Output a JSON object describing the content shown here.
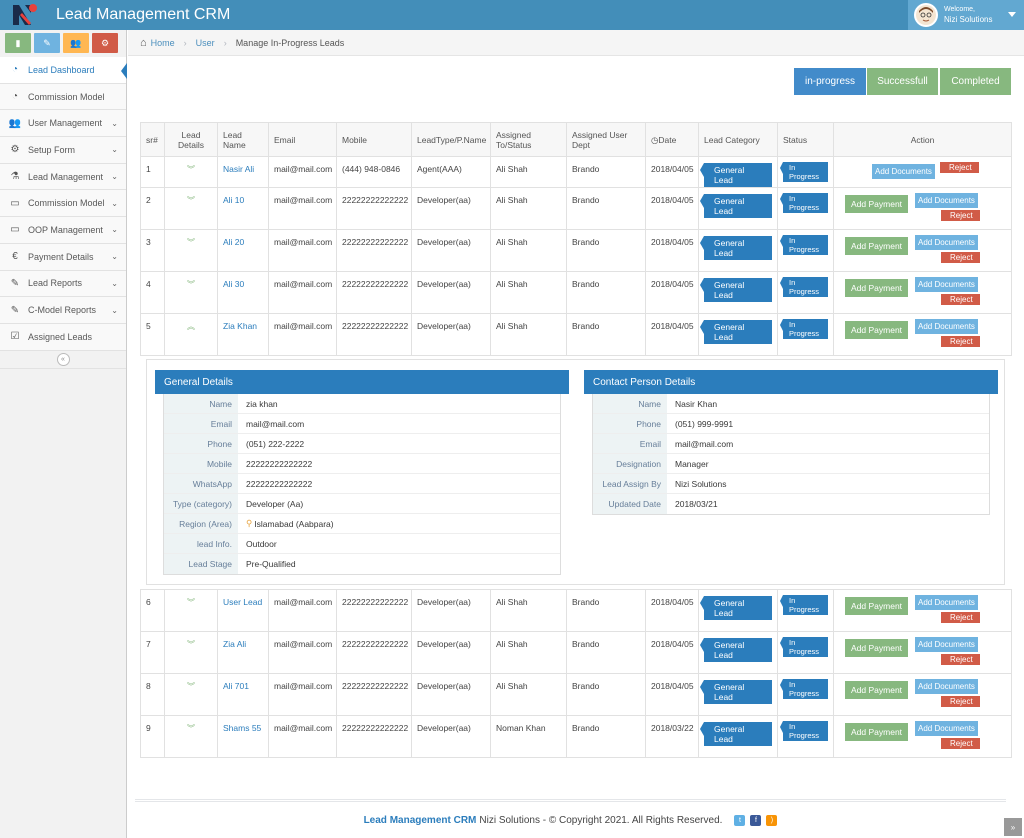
{
  "app": {
    "title": "Lead Management CRM",
    "welcome": "Welcome,",
    "user": "Nizi Solutions"
  },
  "shortcuts": [
    {
      "icon": "bar-chart-icon",
      "color": "#87b87f"
    },
    {
      "icon": "pencil-icon",
      "color": "#6fb3e0"
    },
    {
      "icon": "users-icon",
      "color": "#ffb752"
    },
    {
      "icon": "cogs-icon",
      "color": "#d15b47"
    }
  ],
  "sidebar": {
    "items": [
      {
        "label": "Lead Dashboard",
        "icon": "tachometer-icon",
        "glyph": "◔",
        "expand": false
      },
      {
        "label": "Commission Model",
        "icon": "tachometer-icon",
        "glyph": "◔",
        "expand": false
      },
      {
        "label": "User Management",
        "icon": "users-icon",
        "glyph": "👥",
        "expand": true
      },
      {
        "label": "Setup Form",
        "icon": "cogs-icon",
        "glyph": "⚙",
        "expand": true
      },
      {
        "label": "Lead Management",
        "icon": "flask-icon",
        "glyph": "⚗",
        "expand": true
      },
      {
        "label": "Commission Model",
        "icon": "desktop-icon",
        "glyph": "▭",
        "expand": true
      },
      {
        "label": "OOP Management",
        "icon": "desktop-icon",
        "glyph": "▭",
        "expand": true
      },
      {
        "label": "Payment Details",
        "icon": "euro-icon",
        "glyph": "€",
        "expand": true
      },
      {
        "label": "Lead Reports",
        "icon": "edit-icon",
        "glyph": "✎",
        "expand": true
      },
      {
        "label": "C-Model Reports",
        "icon": "edit-icon",
        "glyph": "✎",
        "expand": true
      },
      {
        "label": "Assigned Leads",
        "icon": "check-square-icon",
        "glyph": "☑",
        "expand": false
      }
    ]
  },
  "breadcrumb": {
    "home": "Home",
    "user": "User",
    "current": "Manage In-Progress Leads"
  },
  "tabs": {
    "in_progress": "in-progress",
    "successful": "Successfull",
    "completed": "Completed"
  },
  "table": {
    "headers": {
      "sr": "sr#",
      "details": "Lead Details",
      "name": "Lead Name",
      "email": "Email",
      "mobile": "Mobile",
      "type": "LeadType/P.Name",
      "assigned": "Assigned To/Status",
      "dept": "Assigned User Dept",
      "date": "Date",
      "category": "Lead Category",
      "status": "Status",
      "action": "Action"
    },
    "rows_top": [
      {
        "sr": "1",
        "name": "Nasir Ali",
        "email": "mail@mail.com",
        "mobile": "(444) 948-0846",
        "type": "Agent(AAA)",
        "assigned": "Ali Shah",
        "dept": "Brando",
        "date": "2018/04/05",
        "category": "General Lead",
        "status": "In Progress"
      },
      {
        "sr": "2",
        "name": "Ali 10",
        "email": "mail@mail.com",
        "mobile": "22222222222222",
        "type": "Developer(aa)",
        "assigned": "Ali Shah",
        "dept": "Brando",
        "date": "2018/04/05",
        "category": "General Lead",
        "status": "In Progress"
      },
      {
        "sr": "3",
        "name": "Ali 20",
        "email": "mail@mail.com",
        "mobile": "22222222222222",
        "type": "Developer(aa)",
        "assigned": "Ali Shah",
        "dept": "Brando",
        "date": "2018/04/05",
        "category": "General Lead",
        "status": "In Progress"
      },
      {
        "sr": "4",
        "name": "Ali 30",
        "email": "mail@mail.com",
        "mobile": "22222222222222",
        "type": "Developer(aa)",
        "assigned": "Ali Shah",
        "dept": "Brando",
        "date": "2018/04/05",
        "category": "General Lead",
        "status": "In Progress"
      },
      {
        "sr": "5",
        "name": "Zia Khan",
        "email": "mail@mail.com",
        "mobile": "22222222222222",
        "type": "Developer(aa)",
        "assigned": "Ali Shah",
        "dept": "Brando",
        "date": "2018/04/05",
        "category": "General Lead",
        "status": "In Progress"
      }
    ],
    "rows_bottom": [
      {
        "sr": "6",
        "name": "User Lead",
        "email": "mail@mail.com",
        "mobile": "22222222222222",
        "type": "Developer(aa)",
        "assigned": "Ali Shah",
        "dept": "Brando",
        "date": "2018/04/05",
        "category": "General Lead",
        "status": "In Progress"
      },
      {
        "sr": "7",
        "name": "Zia Ali",
        "email": "mail@mail.com",
        "mobile": "22222222222222",
        "type": "Developer(aa)",
        "assigned": "Ali Shah",
        "dept": "Brando",
        "date": "2018/04/05",
        "category": "General Lead",
        "status": "In Progress"
      },
      {
        "sr": "8",
        "name": "Ali 701",
        "email": "mail@mail.com",
        "mobile": "22222222222222",
        "type": "Developer(aa)",
        "assigned": "Ali Shah",
        "dept": "Brando",
        "date": "2018/04/05",
        "category": "General Lead",
        "status": "In Progress"
      },
      {
        "sr": "9",
        "name": "Shams 55",
        "email": "mail@mail.com",
        "mobile": "22222222222222",
        "type": "Developer(aa)",
        "assigned": "Noman Khan",
        "dept": "Brando",
        "date": "2018/03/22",
        "category": "General Lead",
        "status": "In Progress"
      }
    ],
    "actions": {
      "add_payment": "Add Payment",
      "add_documents": "Add Documents",
      "reject": "Reject"
    }
  },
  "general_details": {
    "title": "General Details",
    "fields": [
      {
        "k": "Name",
        "v": "zia khan"
      },
      {
        "k": "Email",
        "v": "mail@mail.com"
      },
      {
        "k": "Phone",
        "v": "(051) 222-2222"
      },
      {
        "k": "Mobile",
        "v": "22222222222222"
      },
      {
        "k": "WhatsApp",
        "v": "22222222222222"
      },
      {
        "k": "Type (category)",
        "v": "Developer (Aa)"
      },
      {
        "k": "Region (Area)",
        "v": "Islamabad (Aabpara)"
      },
      {
        "k": "lead Info.",
        "v": "Outdoor"
      },
      {
        "k": "Lead Stage",
        "v": "Pre-Qualified"
      }
    ]
  },
  "contact_details": {
    "title": "Contact Person Details",
    "fields": [
      {
        "k": "Name",
        "v": "Nasir Khan"
      },
      {
        "k": "Phone",
        "v": "(051) 999-9991"
      },
      {
        "k": "Email",
        "v": "mail@mail.com"
      },
      {
        "k": "Designation",
        "v": "Manager"
      },
      {
        "k": "Lead Assign By",
        "v": "Nizi Solutions"
      },
      {
        "k": "Updated Date",
        "v": "2018/03/21"
      }
    ]
  },
  "footer": {
    "brand": "Lead Management CRM",
    "text": "Nizi Solutions - © Copyright 2021. All Rights Reserved."
  }
}
